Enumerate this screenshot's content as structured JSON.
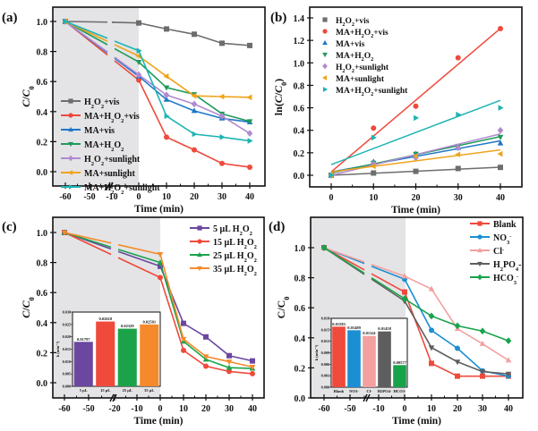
{
  "chart_data": [
    {
      "panel": "(a)",
      "type": "line",
      "xlabel": "Time (min)",
      "ylabel": "C/C0",
      "x": [
        -60,
        -10,
        0,
        10,
        20,
        30,
        40
      ],
      "xticks": [
        "-60",
        "-50",
        "-10",
        "0",
        "10",
        "20",
        "30",
        "40"
      ],
      "yticks": [
        "0.0",
        "0.2",
        "0.4",
        "0.6",
        "0.8",
        "1.0"
      ],
      "ylim": [
        -0.1,
        1.1
      ],
      "dark_region": [
        -60,
        0
      ],
      "legend_position": "bottom-left",
      "series": [
        {
          "name": "H2O2+vis",
          "label_parts": [
            "H",
            "2",
            "O",
            "2",
            "+vis"
          ],
          "color": "#6d6d6d",
          "marker": "square",
          "values": [
            1.0,
            0.995,
            0.99,
            0.95,
            0.915,
            0.855,
            0.84
          ]
        },
        {
          "name": "MA+H2O2+vis",
          "label_parts": [
            "MA+H",
            "2",
            "O",
            "2",
            "+vis"
          ],
          "color": "#ef4a3c",
          "marker": "circle",
          "values": [
            1.0,
            null,
            0.61,
            0.23,
            0.145,
            0.055,
            0.03
          ]
        },
        {
          "name": "MA+vis",
          "label_parts": [
            "MA+vis"
          ],
          "color": "#1f77c8",
          "marker": "triangle-up",
          "values": [
            1.0,
            null,
            0.635,
            0.48,
            0.405,
            0.355,
            0.33
          ]
        },
        {
          "name": "MA+H2O2",
          "label_parts": [
            "MA+H",
            "2",
            "O",
            "2",
            ""
          ],
          "color": "#1e9a5a",
          "marker": "triangle-down",
          "values": [
            1.0,
            null,
            0.73,
            0.56,
            0.515,
            0.385,
            0.335
          ]
        },
        {
          "name": "H2O2+sunlight",
          "label_parts": [
            "H",
            "2",
            "O",
            "2",
            "+sunlight"
          ],
          "color": "#b08ad0",
          "marker": "diamond",
          "values": [
            1.0,
            null,
            0.645,
            0.51,
            0.45,
            0.37,
            0.255
          ]
        },
        {
          "name": "MA+sunlight",
          "label_parts": [
            "MA+sunlight"
          ],
          "color": "#f0a31a",
          "marker": "triangle-left",
          "values": [
            1.0,
            null,
            0.77,
            0.635,
            0.505,
            0.5,
            0.495
          ]
        },
        {
          "name": "MA+H2O2+sunlight",
          "label_parts": [
            "MA+H",
            "2",
            "O",
            "2",
            "+sunlight"
          ],
          "color": "#1db3b3",
          "marker": "triangle-right",
          "values": [
            1.0,
            null,
            0.805,
            0.37,
            0.25,
            0.23,
            0.205
          ]
        }
      ]
    },
    {
      "panel": "(b)",
      "type": "scatter",
      "xlabel": "Time (min)",
      "ylabel": "ln(C/C0)",
      "x": [
        0,
        10,
        20,
        30,
        40
      ],
      "xticks": [
        "0",
        "10",
        "20",
        "30",
        "40"
      ],
      "yticks": [
        "0.0",
        "0.2",
        "0.4",
        "0.6",
        "0.8",
        "1.0",
        "1.2",
        "1.4"
      ],
      "xlim": [
        -5,
        45
      ],
      "ylim": [
        -0.1,
        1.5
      ],
      "legend_position": "top-left",
      "series": [
        {
          "name": "H2O2+vis",
          "label_parts": [
            "H",
            "2",
            "O",
            "2",
            "+vis"
          ],
          "color": "#6d6d6d",
          "marker": "square",
          "values": [
            0.0,
            0.02,
            0.035,
            0.06,
            0.07
          ],
          "fit": [
            0.0,
            0.0018
          ]
        },
        {
          "name": "MA+H2O2+vis",
          "label_parts": [
            "MA+H",
            "2",
            "O",
            "2",
            "+vis"
          ],
          "color": "#ef4a3c",
          "marker": "circle",
          "values": [
            0.0,
            0.42,
            0.615,
            1.045,
            1.305
          ],
          "fit": [
            0.03,
            0.0319
          ]
        },
        {
          "name": "MA+vis",
          "label_parts": [
            "MA+vis"
          ],
          "color": "#1f77c8",
          "marker": "triangle-up",
          "values": [
            0.0,
            0.12,
            0.19,
            0.245,
            0.285
          ],
          "fit": [
            0.03,
            0.0069
          ]
        },
        {
          "name": "MA+H2O2",
          "label_parts": [
            "MA+H",
            "2",
            "O",
            "2",
            ""
          ],
          "color": "#1e9a5a",
          "marker": "triangle-down",
          "values": [
            0.0,
            0.11,
            0.19,
            0.26,
            0.34
          ],
          "fit": [
            0.02,
            0.0081
          ]
        },
        {
          "name": "H2O2+sunlight",
          "label_parts": [
            "H",
            "2",
            "O",
            "2",
            "+sunlight"
          ],
          "color": "#b08ad0",
          "marker": "diamond",
          "values": [
            0.0,
            0.1,
            0.155,
            0.245,
            0.4
          ],
          "fit": [
            0.0,
            0.0092
          ]
        },
        {
          "name": "MA+sunlight",
          "label_parts": [
            "MA+sunlight"
          ],
          "color": "#f0a31a",
          "marker": "triangle-left",
          "values": [
            0.0,
            0.08,
            0.17,
            0.185,
            0.19
          ],
          "fit": [
            0.03,
            0.0049
          ]
        },
        {
          "name": "MA+H2O2+sunlight",
          "label_parts": [
            "MA+H",
            "2",
            "O",
            "2",
            "+sunlight"
          ],
          "color": "#1db3b3",
          "marker": "triangle-right",
          "values": [
            0.0,
            0.335,
            0.51,
            0.54,
            0.6
          ],
          "fit": [
            0.095,
            0.0143
          ]
        }
      ]
    },
    {
      "panel": "(c)",
      "type": "line",
      "xlabel": "Time (min)",
      "ylabel": "C/C0",
      "x": [
        -60,
        -20,
        0,
        10,
        20,
        30,
        40
      ],
      "xticks": [
        "-60",
        "-50",
        "-20",
        "-10",
        "0",
        "10",
        "20",
        "30",
        "40"
      ],
      "yticks": [
        "0.0",
        "0.2",
        "0.4",
        "0.6",
        "0.8",
        "1.0"
      ],
      "ylim": [
        -0.08,
        1.1
      ],
      "dark_region": [
        -60,
        0
      ],
      "legend_position": "top-right",
      "series": [
        {
          "name": "5 μL H2O2",
          "label_parts": [
            "5 μL H",
            "2",
            "O",
            "2",
            ""
          ],
          "color": "#6b47a0",
          "marker": "square",
          "values": [
            1.0,
            null,
            0.775,
            0.395,
            0.305,
            0.18,
            0.145
          ]
        },
        {
          "name": "15 μL H2O2",
          "label_parts": [
            "15 μL H",
            "2",
            "O",
            "2",
            ""
          ],
          "color": "#ef4a3c",
          "marker": "circle",
          "values": [
            1.0,
            null,
            0.7,
            0.215,
            0.11,
            0.075,
            0.06
          ]
        },
        {
          "name": "25 μL H2O2",
          "label_parts": [
            "25 μL H",
            "2",
            "O",
            "2",
            ""
          ],
          "color": "#1ca34a",
          "marker": "triangle-up",
          "values": [
            1.0,
            null,
            0.8,
            0.275,
            0.155,
            0.1,
            0.095
          ]
        },
        {
          "name": "35 μL H2O2",
          "label_parts": [
            "35 μL H",
            "2",
            "O",
            "2",
            ""
          ],
          "color": "#f58a2c",
          "marker": "triangle-down",
          "values": [
            1.0,
            null,
            0.855,
            0.29,
            0.175,
            0.14,
            0.105
          ]
        }
      ],
      "inset": {
        "type": "bar",
        "ylabel": "k (min⁻¹)",
        "ylim": [
          0,
          0.03
        ],
        "yticks": [
          "0.000",
          "0.005",
          "0.010",
          "0.015",
          "0.020",
          "0.025",
          "0.030"
        ],
        "categories": [
          "5 μL",
          "15 μL",
          "25 μL",
          "35 μL"
        ],
        "values": [
          0.01797,
          0.02618,
          0.02329,
          0.02501
        ],
        "value_labels": [
          "0.01797",
          "0.02618",
          "0.02329",
          "0.02501"
        ],
        "colors": [
          "#6b47a0",
          "#ef4a3c",
          "#1ca34a",
          "#f58a2c"
        ]
      }
    },
    {
      "panel": "(d)",
      "type": "line",
      "xlabel": "Time (min)",
      "ylabel": "C/C0",
      "x": [
        -60,
        -30,
        0,
        10,
        20,
        30,
        40
      ],
      "xticks": [
        "-60",
        "-50",
        "-10",
        "0",
        "10",
        "20",
        "30",
        "40"
      ],
      "yticks": [
        "0.0",
        "0.2",
        "0.4",
        "0.6",
        "0.8",
        "1.0"
      ],
      "ylim": [
        0.0,
        1.1
      ],
      "dark_region": [
        -60,
        0
      ],
      "legend_position": "top-right",
      "series": [
        {
          "name": "Blank",
          "label_parts": [
            "Blank"
          ],
          "color": "#ef4a3c",
          "marker": "square",
          "values": [
            1.0,
            null,
            0.705,
            0.23,
            0.145,
            0.145,
            0.145
          ]
        },
        {
          "name": "NO3-",
          "label_parts": [
            "NO",
            "3",
            "",
            "-",
            ""
          ],
          "color": "#1b8fd2",
          "marker": "circle",
          "values": [
            1.0,
            null,
            0.79,
            0.45,
            0.33,
            0.18,
            0.145
          ]
        },
        {
          "name": "Cl-",
          "label_parts": [
            "Cl",
            "",
            "",
            "-",
            ""
          ],
          "color": "#f2a0a0",
          "marker": "triangle-up",
          "values": [
            1.0,
            null,
            0.81,
            0.725,
            0.46,
            0.36,
            0.25
          ]
        },
        {
          "name": "H2PO4-",
          "label_parts": [
            "H",
            "2",
            "PO",
            "4",
            "-"
          ],
          "color": "#5e5e5e",
          "marker": "triangle-down",
          "values": [
            1.0,
            null,
            0.645,
            0.335,
            0.24,
            0.175,
            0.16
          ]
        },
        {
          "name": "HCO3-",
          "label_parts": [
            "HCO",
            "3",
            "",
            "-",
            ""
          ],
          "color": "#17a34a",
          "marker": "diamond",
          "values": [
            1.0,
            null,
            0.66,
            0.545,
            0.48,
            0.445,
            0.38
          ]
        }
      ],
      "inset": {
        "type": "bar",
        "ylabel": "k (min⁻¹)",
        "ylim": [
          0,
          0.018
        ],
        "yticks": [
          "0.000",
          "0.003",
          "0.006",
          "0.009",
          "0.012",
          "0.015",
          "0.018"
        ],
        "categories": [
          "Blank",
          "NO3-",
          "Cl-",
          "H2PO4-",
          "HCO3-"
        ],
        "values": [
          0.01583,
          0.01489,
          0.01341,
          0.01458,
          0.00577
        ],
        "value_labels": [
          "0.01583",
          "0.01489",
          "0.01341",
          "0.01458",
          "0.00577"
        ],
        "colors": [
          "#ef4a3c",
          "#1b8fd2",
          "#f2a0a0",
          "#5e5e5e",
          "#17a34a"
        ]
      }
    }
  ]
}
